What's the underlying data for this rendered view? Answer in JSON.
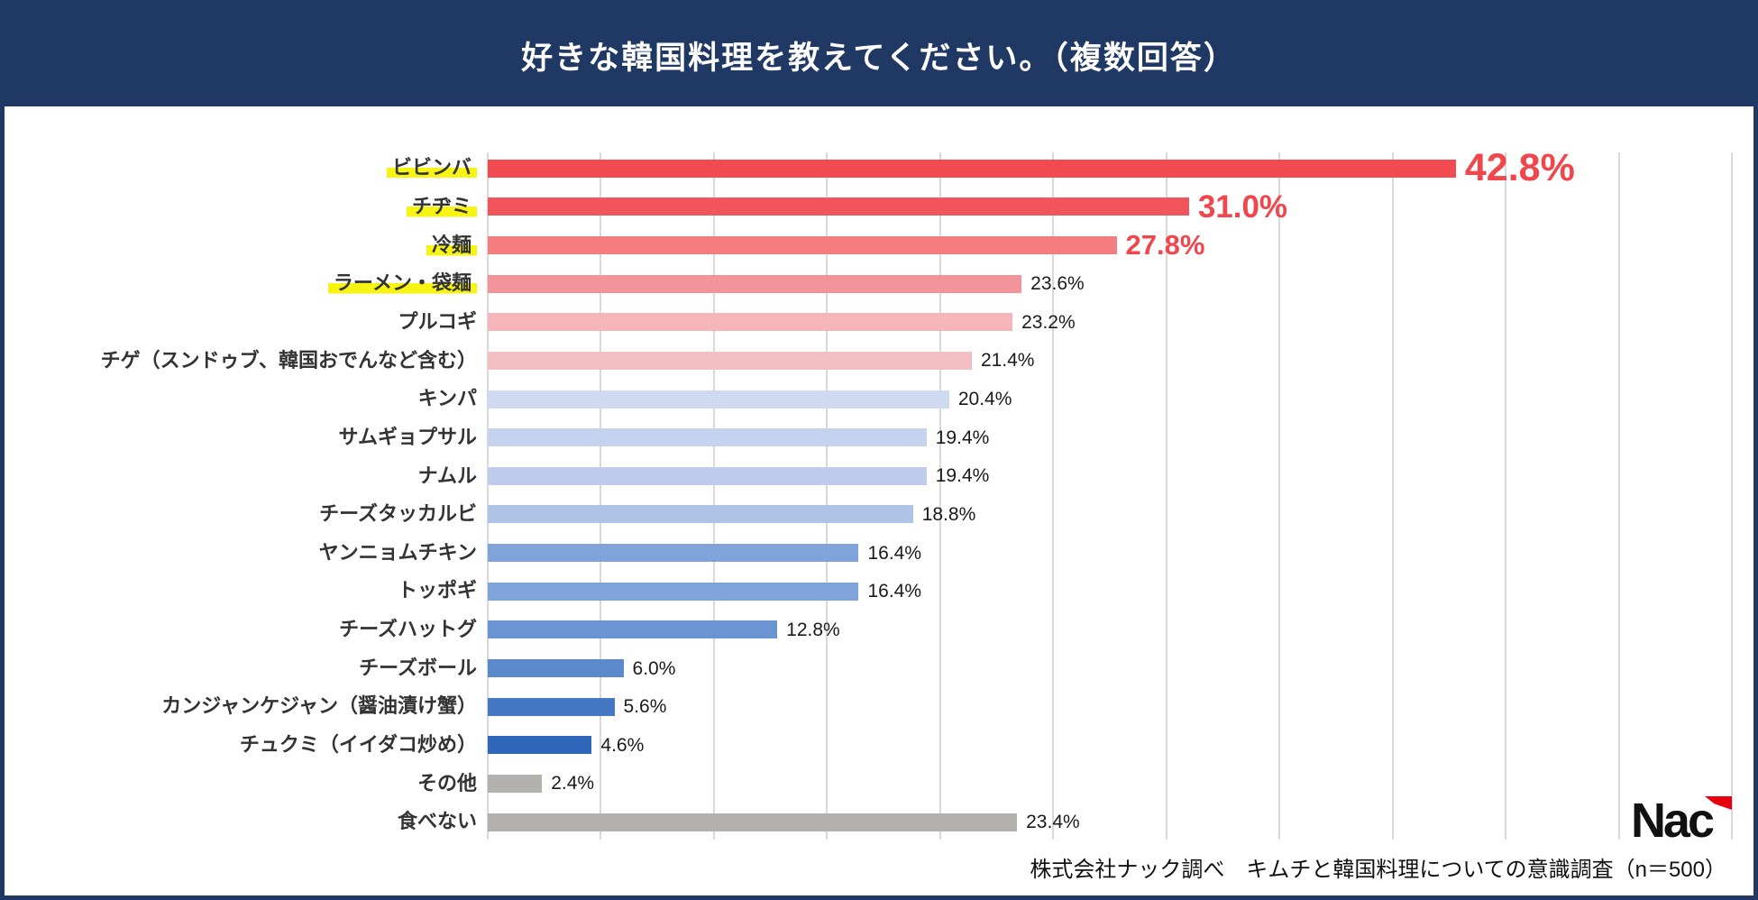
{
  "header": {
    "title": "好きな韓国料理を教えてください。（複数回答）"
  },
  "colors": {
    "header_bg": "#1f3864",
    "accent_red": "#f0464c",
    "grid": "#d9d9d9",
    "highlight_yellow": "#f7f312",
    "logo_red": "#e60012",
    "logo_black": "#111111"
  },
  "chart_data": {
    "type": "bar",
    "orientation": "horizontal",
    "title": "好きな韓国料理を教えてください。（複数回答）",
    "xlim": [
      0,
      55
    ],
    "grid_step": 5,
    "grid": true,
    "legend": false,
    "rows": [
      {
        "label": "ビビンバ",
        "value": 42.8,
        "display": "42.8%",
        "color": "#f14b51",
        "highlight": true,
        "value_style": "big1"
      },
      {
        "label": "チヂミ",
        "value": 31.0,
        "display": "31.0%",
        "color": "#f1555b",
        "highlight": true,
        "value_style": "big2"
      },
      {
        "label": "冷麺",
        "value": 27.8,
        "display": "27.8%",
        "color": "#f47d82",
        "highlight": true,
        "value_style": "big3"
      },
      {
        "label": "ラーメン・袋麺",
        "value": 23.6,
        "display": "23.6%",
        "color": "#f2949a",
        "highlight": true,
        "value_style": "normal"
      },
      {
        "label": "プルコギ",
        "value": 23.2,
        "display": "23.2%",
        "color": "#f6b6b9",
        "highlight": false,
        "value_style": "normal"
      },
      {
        "label": "チゲ（スンドゥブ、韓国おでんなど含む）",
        "value": 21.4,
        "display": "21.4%",
        "color": "#f2bec1",
        "highlight": false,
        "value_style": "normal"
      },
      {
        "label": "キンパ",
        "value": 20.4,
        "display": "20.4%",
        "color": "#cfdaf1",
        "highlight": false,
        "value_style": "normal"
      },
      {
        "label": "サムギョプサル",
        "value": 19.4,
        "display": "19.4%",
        "color": "#c5d3ee",
        "highlight": false,
        "value_style": "normal"
      },
      {
        "label": "ナムル",
        "value": 19.4,
        "display": "19.4%",
        "color": "#bdcdeb",
        "highlight": false,
        "value_style": "normal"
      },
      {
        "label": "チーズタッカルビ",
        "value": 18.8,
        "display": "18.8%",
        "color": "#adc4e7",
        "highlight": false,
        "value_style": "normal"
      },
      {
        "label": "ヤンニョムチキン",
        "value": 16.4,
        "display": "16.4%",
        "color": "#7ea4d9",
        "highlight": false,
        "value_style": "normal"
      },
      {
        "label": "トッポギ",
        "value": 16.4,
        "display": "16.4%",
        "color": "#7ea4d9",
        "highlight": false,
        "value_style": "normal"
      },
      {
        "label": "チーズハットグ",
        "value": 12.8,
        "display": "12.8%",
        "color": "#6b95d2",
        "highlight": false,
        "value_style": "normal"
      },
      {
        "label": "チーズボール",
        "value": 6.0,
        "display": "6.0%",
        "color": "#5c89cc",
        "highlight": false,
        "value_style": "normal"
      },
      {
        "label": "カンジャンケジャン（醤油漬け蟹）",
        "value": 5.6,
        "display": "5.6%",
        "color": "#4577c3",
        "highlight": false,
        "value_style": "normal"
      },
      {
        "label": "チュクミ（イイダコ炒め）",
        "value": 4.6,
        "display": "4.6%",
        "color": "#3066b9",
        "highlight": false,
        "value_style": "normal"
      },
      {
        "label": "その他",
        "value": 2.4,
        "display": "2.4%",
        "color": "#b3b1ae",
        "highlight": false,
        "value_style": "normal"
      },
      {
        "label": "食べない",
        "value": 23.4,
        "display": "23.4%",
        "color": "#b3b1ae",
        "highlight": false,
        "value_style": "normal"
      }
    ]
  },
  "footer": {
    "logo_text": "Nac",
    "source": "株式会社ナック調べ　キムチと韓国料理についての意識調査（n＝500）"
  }
}
